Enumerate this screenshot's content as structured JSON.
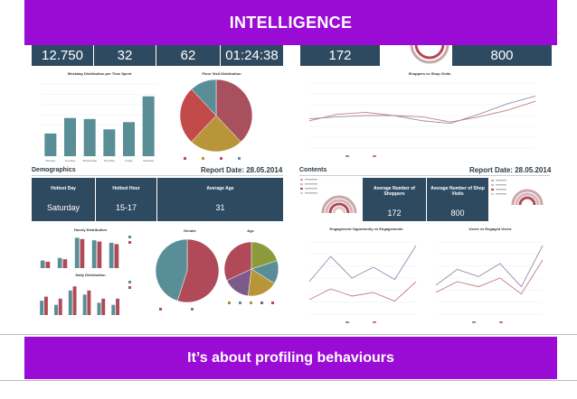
{
  "header": {
    "title": "INTELLIGENCE"
  },
  "footer": {
    "tagline": "It’s about profiling behaviours"
  },
  "top_kpis": {
    "left": [
      "12.750",
      "32",
      "62",
      "01:24:38"
    ],
    "right": [
      "172",
      "800"
    ]
  },
  "charts": {
    "weekday_title": "Weekday Distribution per Time Spent",
    "floor_title": "Floor Visit Distribution",
    "shoppers_title": "Shoppers vs Shop Visits",
    "hourly_title": "Hourly Distribution",
    "daily_title": "Daily Distribution",
    "gender_title": "Gender",
    "age_title": "Age",
    "engage_title": "Engagement Opportunity vs Engagements",
    "users_title": "Users vs Engaged Users"
  },
  "demographics": {
    "section_title": "Demographics",
    "report_date": "Report Date: 28.05.2014",
    "hottest_day_label": "Hottest Day",
    "hottest_day_value": "Saturday",
    "hottest_hour_label": "Hottest Hour",
    "hottest_hour_value": "15-17",
    "avg_age_label": "Average Age",
    "avg_age_value": "31"
  },
  "contents": {
    "section_title": "Contents",
    "report_date": "Report Date: 28.05.2014",
    "avg_shoppers_label": "Average Number of Shoppers",
    "avg_shoppers_value": "172",
    "avg_shop_visits_label": "Average Number of Shop Visits",
    "avg_shop_visits_value": "800"
  },
  "chart_data": [
    {
      "type": "bar",
      "title": "Weekday Distribution per Time Spent",
      "categories": [
        "Monday",
        "Tuesday",
        "Wednesday",
        "Thursday",
        "Friday",
        "Saturday"
      ],
      "values": [
        2.2,
        3.7,
        3.6,
        2.6,
        3.3,
        5.8
      ],
      "ylim": [
        0,
        7
      ]
    },
    {
      "type": "pie",
      "title": "Floor Visit Distribution",
      "values": [
        38,
        24,
        26,
        12
      ],
      "colors": [
        "#a8505e",
        "#b9953a",
        "#c24a4a",
        "#5a8e97"
      ]
    },
    {
      "type": "line",
      "title": "Shoppers vs Shop Visits",
      "series": [
        {
          "name": "Shoppers",
          "values": [
            45,
            48,
            50,
            50,
            42,
            38,
            52,
            68,
            80
          ]
        },
        {
          "name": "Shop Visits",
          "values": [
            42,
            52,
            55,
            50,
            48,
            40,
            48,
            58,
            72
          ]
        }
      ],
      "ylim": [
        0,
        100
      ]
    },
    {
      "type": "bar",
      "title": "Hourly Distribution",
      "series": [
        {
          "name": "Current Week",
          "values": [
            30,
            40,
            120,
            110,
            100
          ]
        },
        {
          "name": "Previous Week",
          "values": [
            25,
            35,
            115,
            105,
            95
          ]
        }
      ],
      "ylim": [
        0,
        125
      ]
    },
    {
      "type": "bar",
      "title": "Daily Distribution",
      "series": [
        {
          "name": "Current Week",
          "values": [
            7,
            5,
            12,
            10,
            6,
            5
          ]
        },
        {
          "name": "Previous Week",
          "values": [
            9,
            8,
            14,
            12,
            8,
            8
          ]
        }
      ],
      "ylim": [
        0,
        15
      ]
    },
    {
      "type": "pie",
      "title": "Gender",
      "values": [
        55,
        45
      ],
      "colors": [
        "#b04a58",
        "#5a8e97"
      ]
    },
    {
      "type": "pie",
      "title": "Age",
      "values": [
        20,
        14,
        18,
        16,
        32
      ],
      "colors": [
        "#8c9a3c",
        "#5a8e97",
        "#b9953a",
        "#7c5a8c",
        "#b04a58"
      ]
    },
    {
      "type": "line",
      "title": "Engagement Opportunity vs Engagements",
      "series": [
        {
          "name": "Engagement Opportunity",
          "values": [
            45,
            80,
            50,
            65,
            48,
            95
          ]
        },
        {
          "name": "Engagements",
          "values": [
            20,
            35,
            25,
            30,
            18,
            45
          ]
        }
      ],
      "ylim": [
        0,
        100
      ]
    },
    {
      "type": "line",
      "title": "Users vs Engaged Users",
      "series": [
        {
          "name": "Users",
          "values": [
            40,
            62,
            52,
            70,
            38,
            95
          ]
        },
        {
          "name": "Engaged Users",
          "values": [
            30,
            45,
            38,
            50,
            28,
            75
          ]
        }
      ],
      "ylim": [
        0,
        100
      ]
    }
  ],
  "colors": {
    "accent": "#9b0bd6",
    "kpi": "#2e4a61",
    "teal": "#5a8e97",
    "red": "#b04a58"
  }
}
